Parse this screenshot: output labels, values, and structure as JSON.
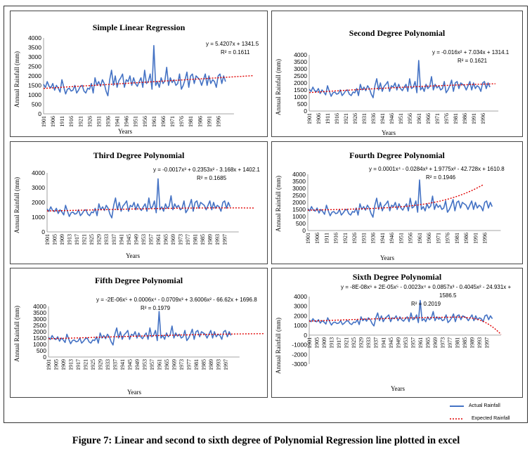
{
  "figure_caption": "Figure 7: Linear and second to sixth degree of Polynomial Regression line plotted in excel",
  "legend": {
    "actual": "Actual Rainfall",
    "expected": "Expected Rainfall",
    "actual_color": "#4472c4",
    "expected_color": "#e00000"
  },
  "rainfall_series": [
    1560,
    1390,
    1700,
    1450,
    1380,
    1600,
    1250,
    1500,
    1350,
    1150,
    1800,
    1400,
    1050,
    1300,
    1350,
    1200,
    1250,
    1500,
    1100,
    1250,
    1450,
    1500,
    1200,
    1100,
    1350,
    1300,
    1600,
    1100,
    1900,
    1500,
    1700,
    1450,
    1800,
    1600,
    1200,
    950,
    1800,
    2300,
    1500,
    2000,
    1400,
    1750,
    1900,
    2100,
    1400,
    1800,
    1700,
    2000,
    1500,
    1900,
    1600,
    1450,
    1700,
    1900,
    1400,
    2300,
    1600,
    1700,
    2100,
    1300,
    3600,
    1500,
    1700,
    1400,
    1900,
    1600,
    1750,
    2450,
    1500,
    1900,
    1650,
    1800,
    1500,
    1600,
    2100,
    1300,
    1500,
    1800,
    2200,
    1400,
    2000,
    2100,
    1600,
    2000,
    1900,
    1800,
    1500,
    1800,
    2100,
    1500,
    2000,
    1600,
    1800,
    1700,
    1400,
    2000,
    2100,
    1600,
    2000,
    1700
  ],
  "chart_data": [
    {
      "type": "line",
      "title": "Simple Linear Regression",
      "equation": "y = 5.4207x + 1341.5",
      "r2": "R² = 0.1611",
      "xlabel": "Years",
      "ylabel": "Annual Rainfall (mm)",
      "ylim": [
        0,
        4000
      ],
      "yticks": [
        0,
        500,
        1000,
        1500,
        2000,
        2500,
        3000,
        3500,
        4000
      ],
      "xticks": [
        "1901",
        "1906",
        "1911",
        "1916",
        "1921",
        "1926",
        "1931",
        "1936",
        "1941",
        "1946",
        "1951",
        "1956",
        "1961",
        "1966",
        "1971",
        "1976",
        "1981",
        "1986",
        "1991",
        "1996"
      ],
      "tick_step": 5,
      "trend_type": "linear",
      "trend_end_year": 2025,
      "series": [
        {
          "name": "Actual Rainfall"
        },
        {
          "name": "Expected Rainfall"
        }
      ]
    },
    {
      "type": "line",
      "title": "Second Degree Polynomial",
      "equation": "y = -0.016x² + 7.034x + 1314.1",
      "r2": "R² = 0.1621",
      "xlabel": "Years",
      "ylabel": "Annual Rainfall (mm)",
      "ylim": [
        0,
        4000
      ],
      "yticks": [
        0,
        500,
        1000,
        1500,
        2000,
        2500,
        3000,
        3500,
        4000
      ],
      "xticks": [
        "1901",
        "1906",
        "1911",
        "1916",
        "1921",
        "1926",
        "1931",
        "1936",
        "1941",
        "1946",
        "1951",
        "1956",
        "1961",
        "1966",
        "1971",
        "1976",
        "1981",
        "1986",
        "1991",
        "1996"
      ],
      "tick_step": 5,
      "trend_type": "poly2",
      "trend_end_year": 2025,
      "series": [
        {
          "name": "Actual Rainfall"
        },
        {
          "name": "Expected Rainfall"
        }
      ]
    },
    {
      "type": "line",
      "title": "Third  Degree Polynomial",
      "equation": "y = -0.0017x³ + 0.2353x² - 3.168x + 1402.1",
      "r2": "R² = 0.1685",
      "xlabel": "Years",
      "ylabel": "Annual Rainfall (mm)",
      "ylim": [
        0,
        4000
      ],
      "yticks": [
        0,
        1000,
        2000,
        3000,
        4000
      ],
      "xticks": [
        "1901",
        "1905",
        "1909",
        "1913",
        "1917",
        "1921",
        "1925",
        "1929",
        "1933",
        "1937",
        "1941",
        "1945",
        "1949",
        "1953",
        "1957",
        "1961",
        "1965",
        "1969",
        "1973",
        "1977",
        "1981",
        "1985",
        "1989",
        "1993",
        "1997"
      ],
      "tick_step": 4,
      "trend_type": "poly3",
      "trend_end_year": 2025,
      "series": [
        {
          "name": "Actual Rainfall"
        },
        {
          "name": "Expected Rainfall"
        }
      ]
    },
    {
      "type": "line",
      "title": "Fourth  Degree Polynomial",
      "equation": "y = 0.0001x⁴ - 0.0284x³ + 1.9775x² - 42.728x + 1610.8",
      "r2": "R² = 0.1946",
      "xlabel": "Years",
      "ylabel": "Annual Rainfall (mm)",
      "ylim": [
        0,
        4000
      ],
      "yticks": [
        0,
        500,
        1000,
        1500,
        2000,
        2500,
        3000,
        3500,
        4000
      ],
      "xticks": [
        "1901",
        "1906",
        "1911",
        "1916",
        "1921",
        "1926",
        "1931",
        "1936",
        "1941",
        "1946",
        "1951",
        "1956",
        "1961",
        "1966",
        "1971",
        "1976",
        "1981",
        "1986",
        "1991",
        "1996"
      ],
      "tick_step": 5,
      "trend_type": "poly4",
      "trend_end_year": 2025,
      "series": [
        {
          "name": "Actual Rainfall"
        },
        {
          "name": "Expected Rainfall"
        }
      ]
    },
    {
      "type": "line",
      "title": "Fifth Degree Polynomial",
      "equation": "y = -2E-06x⁵ + 0.0006x⁴ - 0.0709x³ + 3.6006x² - 66.62x + 1696.8",
      "r2": "R² = 0.1979",
      "xlabel": "Years",
      "ylabel": "Annual Rainfall (mm)",
      "ylim": [
        0,
        4000
      ],
      "yticks": [
        0,
        500,
        1000,
        1500,
        2000,
        2500,
        3000,
        3500,
        4000
      ],
      "xticks": [
        "1901",
        "1905",
        "1909",
        "1913",
        "1917",
        "1921",
        "1925",
        "1929",
        "1933",
        "1937",
        "1941",
        "1945",
        "1949",
        "1953",
        "1957",
        "1961",
        "1965",
        "1969",
        "1973",
        "1977",
        "1981",
        "1985",
        "1989",
        "1993",
        "1997"
      ],
      "tick_step": 4,
      "trend_type": "poly5",
      "trend_end_year": 2025,
      "series": [
        {
          "name": "Actual Rainfall"
        },
        {
          "name": "Expected Rainfall"
        }
      ]
    },
    {
      "type": "line",
      "title": "Sixth  Degree Polynomial",
      "equation": "y = -8E-08x⁶ + 2E-05x⁵ - 0.0023x⁴ + 0.0857x³ - 0.4045x² - 24.931x +",
      "equation_line2": "1586.5",
      "r2": "R² = 0.2019",
      "xlabel": "Years",
      "ylabel": "Annual Rainfall (mm)",
      "ylim": [
        -3000,
        4000
      ],
      "yticks": [
        -3000,
        -2000,
        -1000,
        0,
        1000,
        2000,
        3000,
        4000
      ],
      "xticks": [
        "1901",
        "1905",
        "1909",
        "1913",
        "1917",
        "1921",
        "1925",
        "1929",
        "1933",
        "1937",
        "1941",
        "1945",
        "1949",
        "1953",
        "1957",
        "1961",
        "1965",
        "1969",
        "1973",
        "1977",
        "1981",
        "1985",
        "1989",
        "1993",
        "1997"
      ],
      "tick_step": 4,
      "trend_type": "poly6",
      "trend_end_year": 2025,
      "series": [
        {
          "name": "Actual Rainfall"
        },
        {
          "name": "Expected Rainfall"
        }
      ]
    }
  ]
}
